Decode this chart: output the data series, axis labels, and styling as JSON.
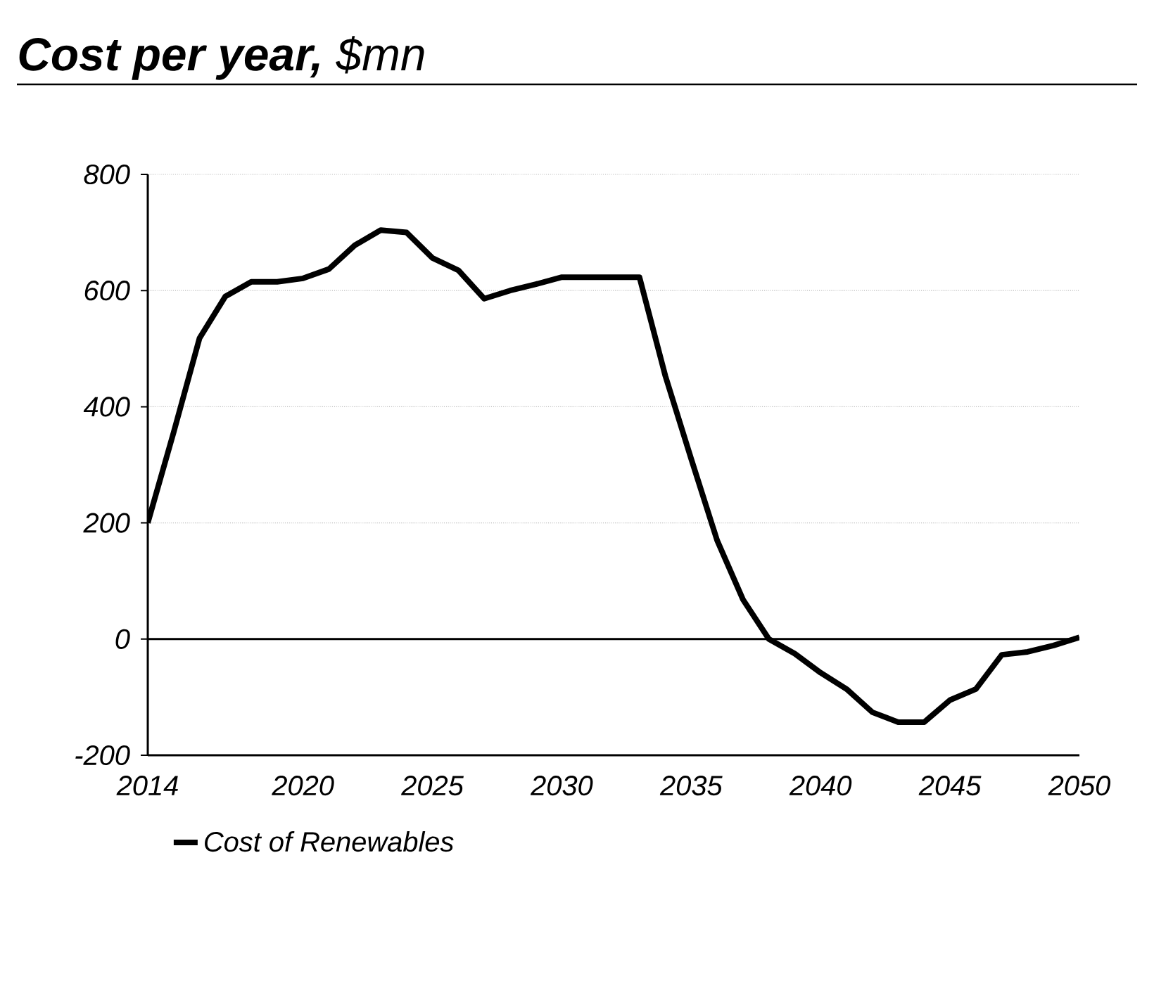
{
  "chart_data": {
    "type": "line",
    "title": "**Cost per year,** $mn",
    "x": [
      2014,
      2015,
      2016,
      2017,
      2018,
      2019,
      2020,
      2021,
      2022,
      2023,
      2024,
      2025,
      2026,
      2027,
      2028,
      2029,
      2030,
      2031,
      2032,
      2033,
      2034,
      2035,
      2036,
      2037,
      2038,
      2039,
      2040,
      2041,
      2042,
      2043,
      2044,
      2045,
      2046,
      2047,
      2048,
      2049,
      2050
    ],
    "series": [
      {
        "name": "Cost of Renewables",
        "color": "#000000",
        "values": [
          200,
          356,
          518,
          590,
          615,
          615,
          621,
          637,
          678,
          704,
          700,
          656,
          635,
          586,
          600,
          611,
          623,
          623,
          623,
          623,
          453,
          310,
          170,
          68,
          0,
          -25,
          -58,
          -86,
          -126,
          -143,
          -143,
          -105,
          -86,
          -27,
          -22,
          -11,
          3
        ]
      }
    ],
    "xlim": [
      2014,
      2050
    ],
    "xticks": [
      2014,
      2020,
      2025,
      2030,
      2035,
      2040,
      2045,
      2050
    ],
    "ylim": [
      -200,
      800
    ],
    "yticks": [
      -200,
      0,
      200,
      400,
      600,
      800
    ],
    "ref_lines": [
      {
        "axis": "y",
        "value": 0,
        "color": "#000000"
      }
    ],
    "grid": "y",
    "legend": "bottom",
    "marker": "none",
    "line_style": "solid"
  }
}
